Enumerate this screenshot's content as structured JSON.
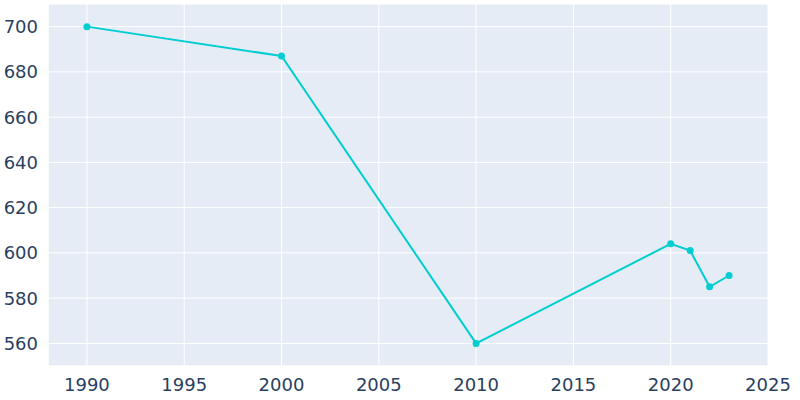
{
  "chart_data": {
    "type": "line",
    "x": [
      1990,
      2000,
      2010,
      2020,
      2021,
      2022,
      2023
    ],
    "values": [
      700,
      687,
      560,
      604,
      601,
      585,
      590
    ],
    "color": "#00ced1",
    "xlim": [
      1988,
      2025
    ],
    "ylim": [
      550,
      710
    ],
    "xticks": [
      1990,
      1995,
      2000,
      2005,
      2010,
      2015,
      2020,
      2025
    ],
    "yticks": [
      560,
      580,
      600,
      620,
      640,
      660,
      680,
      700
    ],
    "grid": true,
    "marker": "circle"
  }
}
